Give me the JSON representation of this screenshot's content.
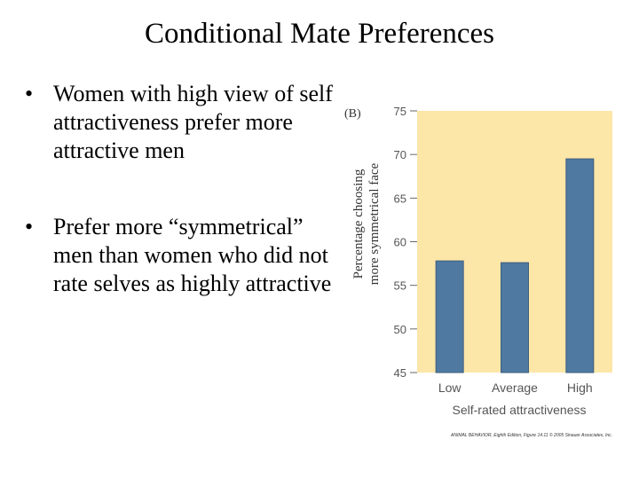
{
  "slide": {
    "title": "Conditional Mate Preferences",
    "bullets": [
      "Women with high view of self attractiveness prefer more attractive men",
      "Prefer more “symmetrical” men than women who did not rate selves as highly attractive"
    ]
  },
  "figure": {
    "panel_label": "(B)",
    "credit": "ANIMAL BEHAVIOR, Eighth Edition, Figure 14.11 © 2005 Sinauer Associates, Inc."
  },
  "colors": {
    "plot_background": "#fce6a8",
    "bar": "#4f79a0",
    "axis": "#666666"
  },
  "chart_data": {
    "type": "bar",
    "categories": [
      "Low",
      "Average",
      "High"
    ],
    "values": [
      57.8,
      57.6,
      69.5
    ],
    "ylim": [
      45,
      75
    ],
    "yticks": [
      45,
      50,
      55,
      60,
      65,
      70,
      75
    ],
    "ylabel_line1": "Percentage choosing",
    "ylabel_line2": "more symmetrical face",
    "xlabel": "Self-rated attractiveness"
  }
}
